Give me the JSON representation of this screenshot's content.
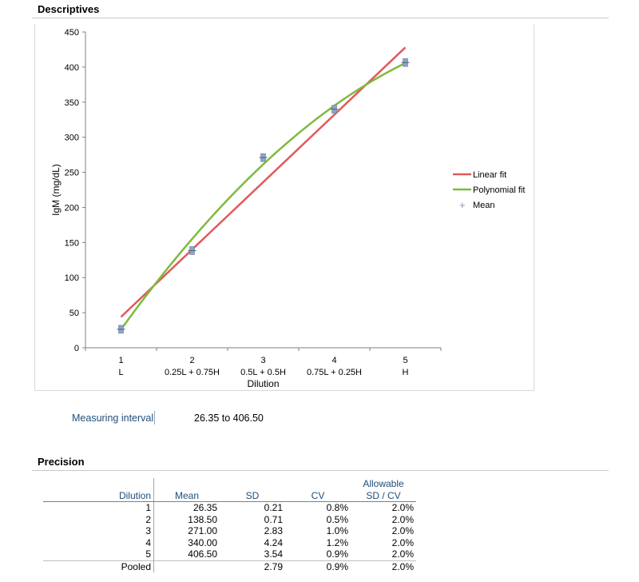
{
  "sections": {
    "descriptives": "Descriptives",
    "precision": "Precision"
  },
  "chart_data": {
    "type": "scatter",
    "ylabel": "IgM (mg/dL)",
    "xlabel": "Dilution",
    "ylim": [
      0,
      450
    ],
    "yticks": [
      0,
      50,
      100,
      150,
      200,
      250,
      300,
      350,
      400,
      450
    ],
    "xlim": [
      0.5,
      5.5
    ],
    "x": [
      1,
      2,
      3,
      4,
      5
    ],
    "x_tick_labels": [
      "1",
      "2",
      "3",
      "4",
      "5"
    ],
    "x_tick_sublabels": [
      "L",
      "0.25L + 0.75H",
      "0.5L + 0.5H",
      "0.75L + 0.25H",
      "H"
    ],
    "series": [
      {
        "name": "Mean",
        "kind": "points",
        "values": [
          26.35,
          138.5,
          271.0,
          340.0,
          406.5
        ],
        "color": "#7f96b8"
      },
      {
        "name": "Linear fit",
        "kind": "line",
        "values": [
          44,
          140,
          236,
          332,
          428
        ],
        "color": "#e05a5a"
      },
      {
        "name": "Polynomial fit",
        "kind": "curve",
        "values": [
          26,
          155,
          262,
          344,
          406
        ],
        "color": "#7fba3e"
      }
    ],
    "legend": [
      "Linear fit",
      "Polynomial fit",
      "Mean"
    ],
    "legend_position": "right"
  },
  "measuring_interval": {
    "label": "Measuring interval",
    "value": "26.35  to 406.50"
  },
  "precision_table": {
    "headers": {
      "dilution": "Dilution",
      "mean": "Mean",
      "sd": "SD",
      "cv": "CV",
      "allowable_top": "Allowable",
      "allowable_bottom": "SD / CV"
    },
    "rows": [
      {
        "dilution": "1",
        "mean": "26.35",
        "sd": "0.21",
        "cv": "0.8%",
        "allowable": "2.0%"
      },
      {
        "dilution": "2",
        "mean": "138.50",
        "sd": "0.71",
        "cv": "0.5%",
        "allowable": "2.0%"
      },
      {
        "dilution": "3",
        "mean": "271.00",
        "sd": "2.83",
        "cv": "1.0%",
        "allowable": "2.0%"
      },
      {
        "dilution": "4",
        "mean": "340.00",
        "sd": "4.24",
        "cv": "1.2%",
        "allowable": "2.0%"
      },
      {
        "dilution": "5",
        "mean": "406.50",
        "sd": "3.54",
        "cv": "0.9%",
        "allowable": "2.0%"
      }
    ],
    "pooled": {
      "dilution": "Pooled",
      "mean": "",
      "sd": "2.79",
      "cv": "0.9%",
      "allowable": "2.0%"
    }
  }
}
